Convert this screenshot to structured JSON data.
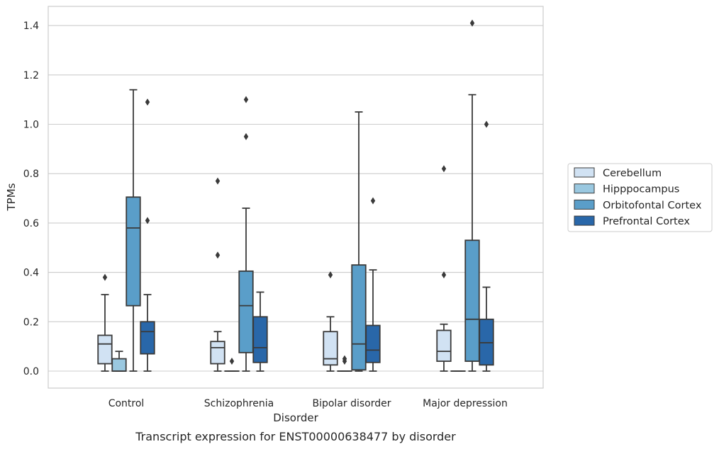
{
  "chart_data": {
    "type": "box",
    "title": "",
    "caption": "Transcript expression for ENST00000638477 by disorder",
    "xlabel": "Disorder",
    "ylabel": "TPMs",
    "ylim": [
      -0.07,
      1.48
    ],
    "yticks": [
      "0.0",
      "0.2",
      "0.4",
      "0.6",
      "0.8",
      "1.0",
      "1.2",
      "1.4"
    ],
    "yticks_values": [
      0.0,
      0.2,
      0.4,
      0.6,
      0.8,
      1.0,
      1.2,
      1.4
    ],
    "grid": true,
    "legend_position": "right",
    "categories": [
      "Control",
      "Schizophrenia",
      "Bipolar disorder",
      "Major depression"
    ],
    "series": [
      {
        "name": "Cerebellum",
        "color": "#d1e2f3",
        "boxes": [
          {
            "min": 0.0,
            "q1": 0.03,
            "median": 0.11,
            "q3": 0.145,
            "max": 0.31,
            "outliers": [
              0.38
            ]
          },
          {
            "min": 0.0,
            "q1": 0.03,
            "median": 0.095,
            "q3": 0.12,
            "max": 0.16,
            "outliers": [
              0.47,
              0.77
            ]
          },
          {
            "min": 0.0,
            "q1": 0.025,
            "median": 0.05,
            "q3": 0.16,
            "max": 0.22,
            "outliers": [
              0.39
            ]
          },
          {
            "min": 0.0,
            "q1": 0.04,
            "median": 0.08,
            "q3": 0.165,
            "max": 0.19,
            "outliers": [
              0.39,
              0.82
            ]
          }
        ]
      },
      {
        "name": "Hipppocampus",
        "color": "#9ac8e0",
        "boxes": [
          {
            "min": 0.0,
            "q1": 0.0,
            "median": 0.0,
            "q3": 0.05,
            "max": 0.08,
            "outliers": []
          },
          {
            "min": 0.0,
            "q1": 0.0,
            "median": 0.0,
            "q3": 0.0,
            "max": 0.0,
            "outliers": [
              0.04
            ]
          },
          {
            "min": 0.0,
            "q1": 0.0,
            "median": 0.0,
            "q3": 0.0,
            "max": 0.0,
            "outliers": [
              0.04,
              0.05
            ]
          },
          {
            "min": 0.0,
            "q1": 0.0,
            "median": 0.0,
            "q3": 0.0,
            "max": 0.0,
            "outliers": []
          }
        ]
      },
      {
        "name": "Orbitofontal Cortex",
        "color": "#5a9ec9",
        "boxes": [
          {
            "min": 0.0,
            "q1": 0.265,
            "median": 0.58,
            "q3": 0.705,
            "max": 1.14,
            "outliers": []
          },
          {
            "min": 0.0,
            "q1": 0.075,
            "median": 0.265,
            "q3": 0.405,
            "max": 0.66,
            "outliers": [
              0.95,
              1.1
            ]
          },
          {
            "min": 0.0,
            "q1": 0.005,
            "median": 0.11,
            "q3": 0.43,
            "max": 1.05,
            "outliers": []
          },
          {
            "min": 0.0,
            "q1": 0.04,
            "median": 0.21,
            "q3": 0.53,
            "max": 1.12,
            "outliers": [
              1.41
            ]
          }
        ]
      },
      {
        "name": "Prefrontal Cortex",
        "color": "#2967a9",
        "boxes": [
          {
            "min": 0.0,
            "q1": 0.07,
            "median": 0.16,
            "q3": 0.2,
            "max": 0.31,
            "outliers": [
              0.61,
              1.09
            ]
          },
          {
            "min": 0.0,
            "q1": 0.035,
            "median": 0.095,
            "q3": 0.22,
            "max": 0.32,
            "outliers": []
          },
          {
            "min": 0.0,
            "q1": 0.035,
            "median": 0.085,
            "q3": 0.185,
            "max": 0.41,
            "outliers": [
              0.69
            ]
          },
          {
            "min": 0.0,
            "q1": 0.025,
            "median": 0.115,
            "q3": 0.21,
            "max": 0.34,
            "outliers": [
              1.0
            ]
          }
        ]
      }
    ]
  }
}
